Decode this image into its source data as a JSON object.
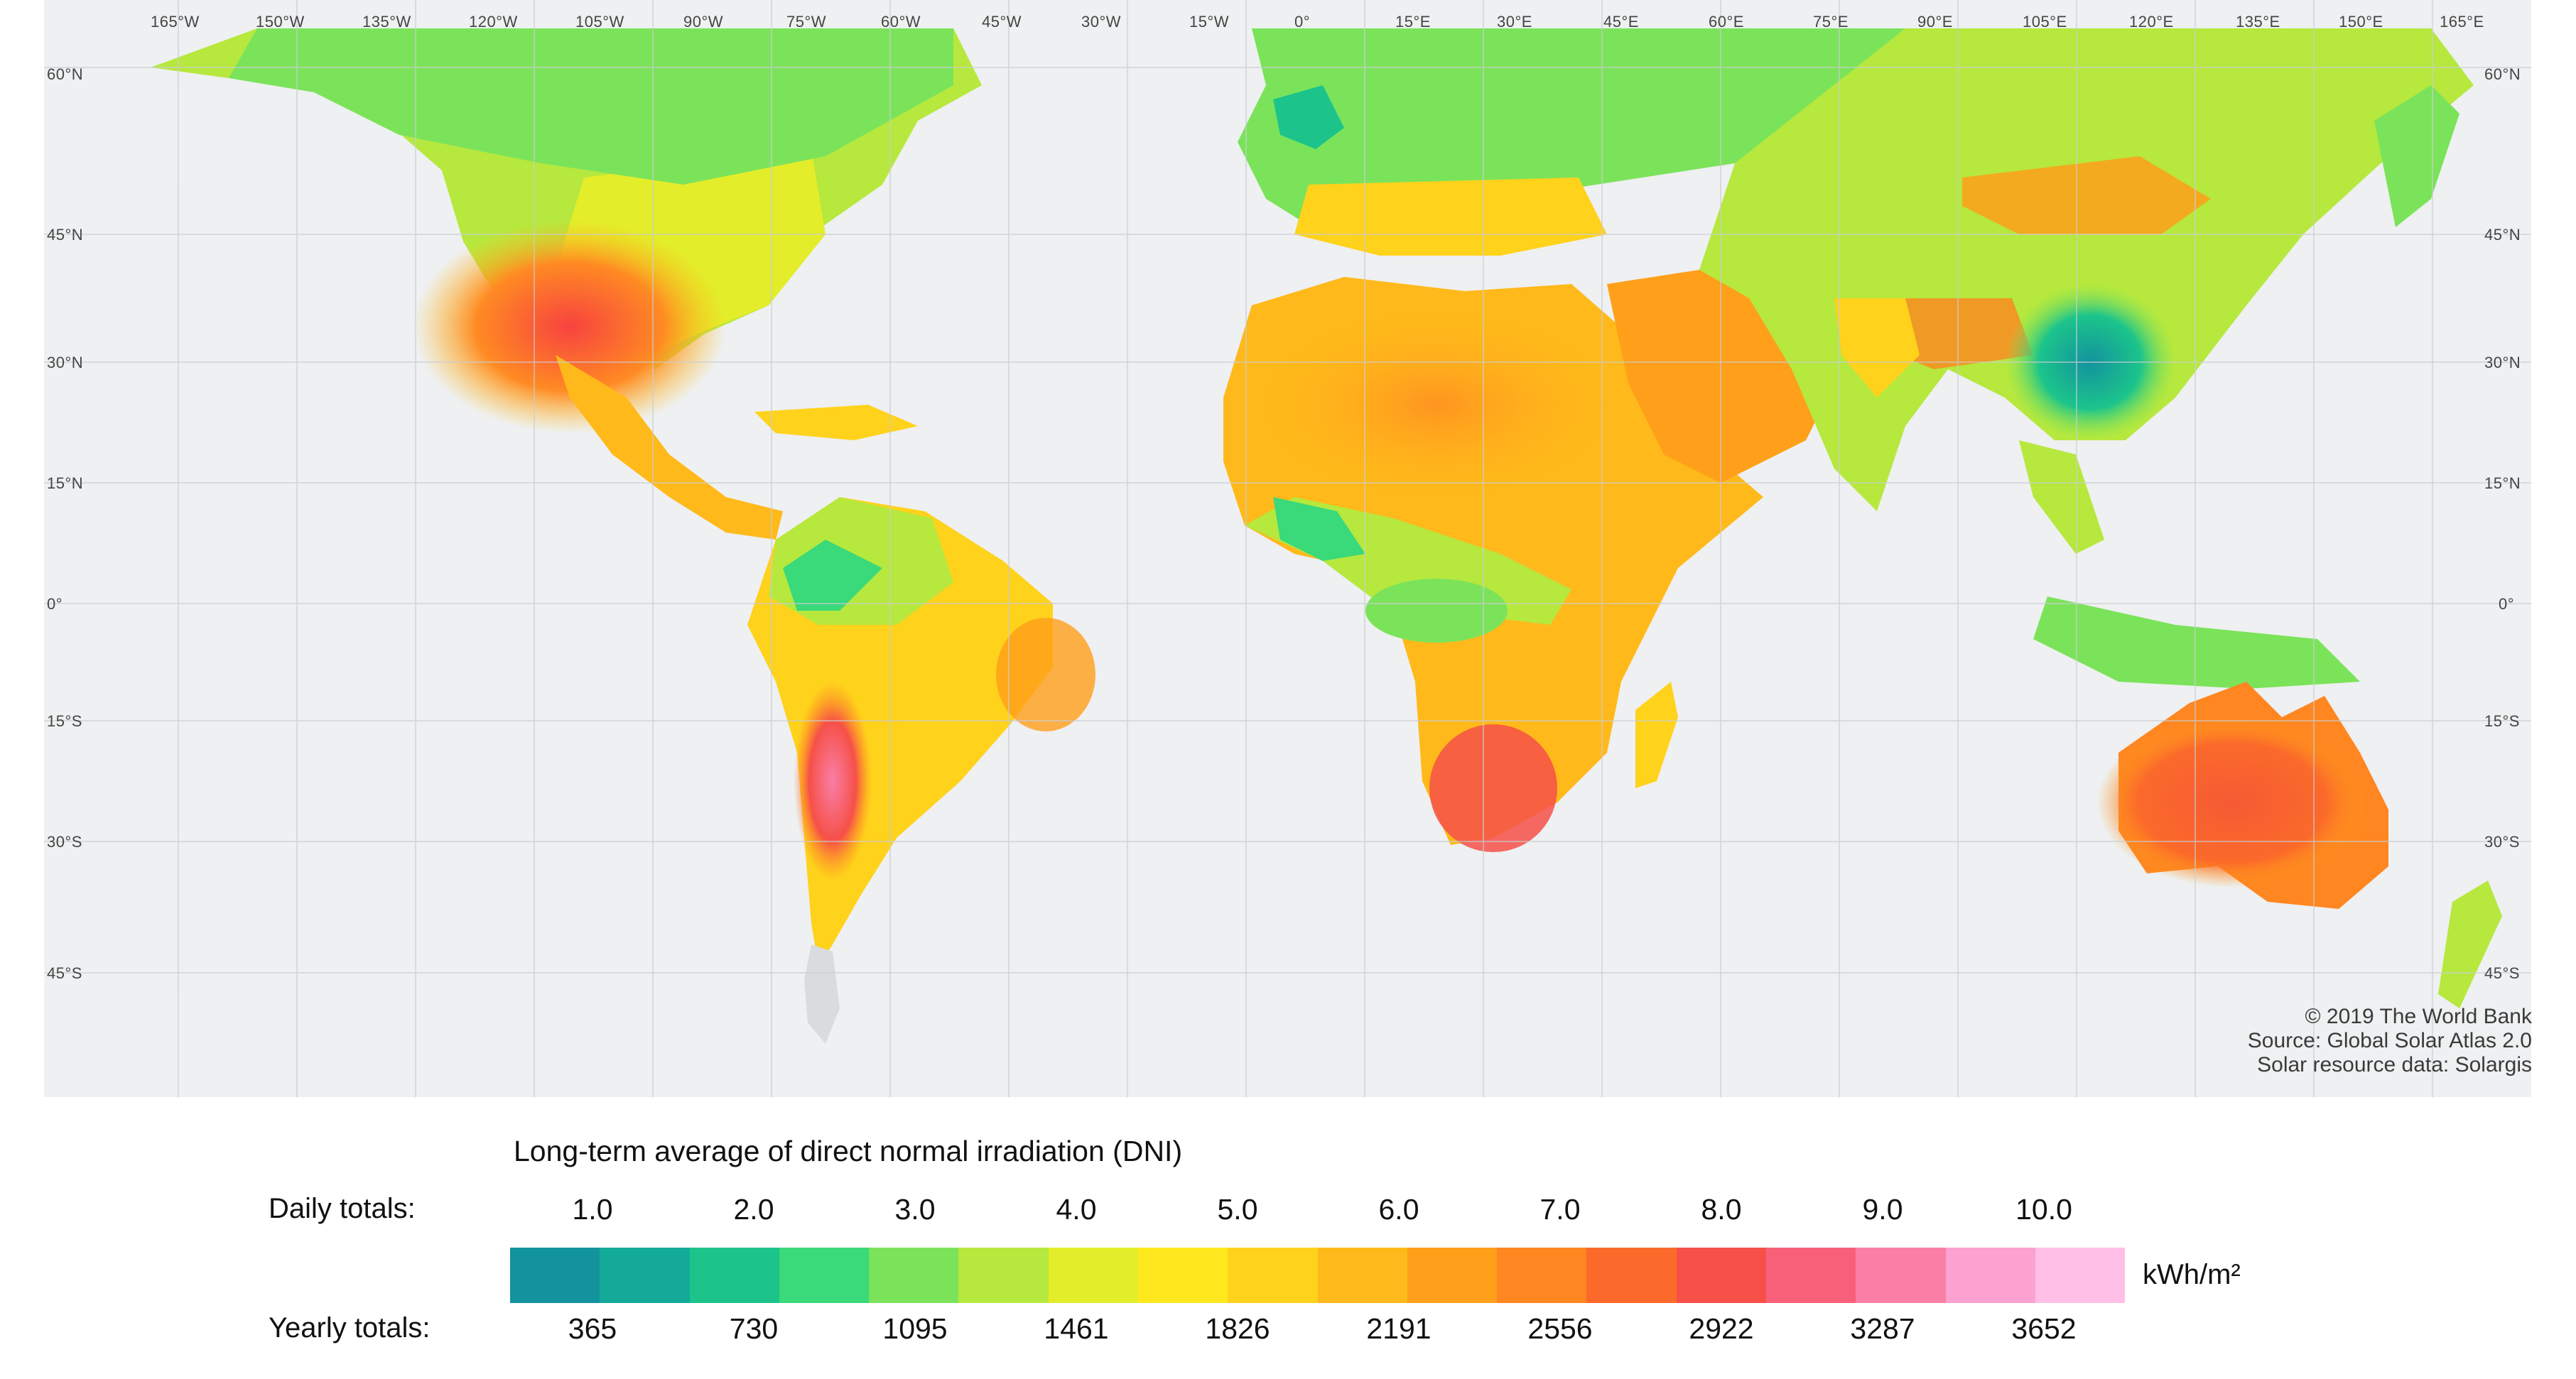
{
  "map": {
    "longitude_labels": [
      "165°W",
      "150°W",
      "135°W",
      "120°W",
      "105°W",
      "90°W",
      "75°W",
      "60°W",
      "45°W",
      "30°W",
      "15°W",
      "0°",
      "15°E",
      "30°E",
      "45°E",
      "60°E",
      "75°E",
      "90°E",
      "105°E",
      "120°E",
      "135°E",
      "150°E",
      "165°E"
    ],
    "latitude_labels": [
      "60°N",
      "45°N",
      "30°N",
      "15°N",
      "0°",
      "15°S",
      "30°S",
      "45°S"
    ],
    "credits": {
      "line1": "© 2019 The World Bank",
      "line2": "Source: Global Solar Atlas 2.0",
      "line3": "Solar resource data: Solargis"
    }
  },
  "legend": {
    "title": "Long-term average of direct normal irradiation (DNI)",
    "daily_label": "Daily totals:",
    "yearly_label": "Yearly totals:",
    "daily_ticks": [
      "1.0",
      "2.0",
      "3.0",
      "4.0",
      "5.0",
      "6.0",
      "7.0",
      "8.0",
      "9.0",
      "10.0"
    ],
    "yearly_ticks": [
      "365",
      "730",
      "1095",
      "1461",
      "1826",
      "2191",
      "2556",
      "2922",
      "3287",
      "3652"
    ],
    "unit": "kWh/m²",
    "colors": [
      "#12939e",
      "#13aa98",
      "#1cc48b",
      "#3ad97a",
      "#7be35a",
      "#b6e83e",
      "#e3ed2a",
      "#ffe81e",
      "#ffd21c",
      "#ffb91a",
      "#ff9f1a",
      "#ff8620",
      "#fb6a2a",
      "#f65048",
      "#f8607a",
      "#f97fa6",
      "#fca1d0",
      "#ffbfe6"
    ]
  }
}
